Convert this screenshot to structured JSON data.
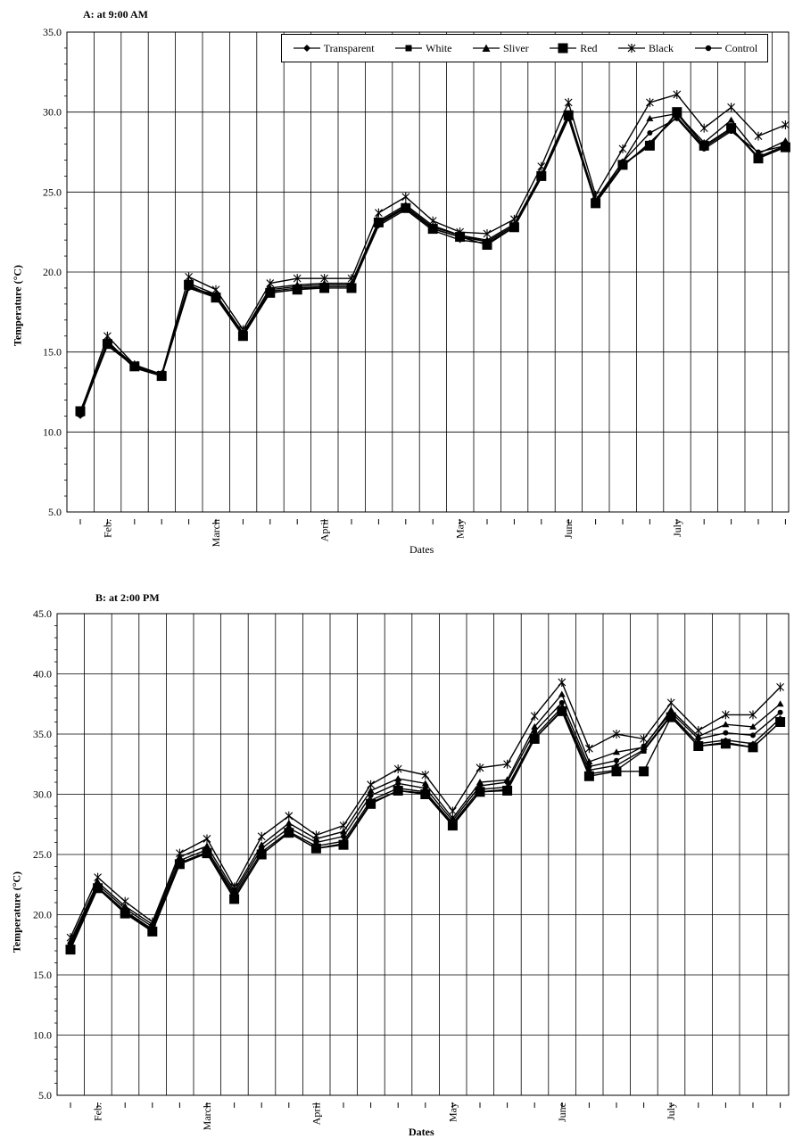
{
  "chart_data": [
    {
      "type": "line",
      "title": "A: at 9:00 AM",
      "xlabel": "Dates",
      "ylabel": "Temperature (°C)",
      "ylim": [
        5,
        35
      ],
      "yticks": [
        "5.0",
        "10.0",
        "15.0",
        "20.0",
        "25.0",
        "30.0",
        "35.0"
      ],
      "month_labels": [
        "Feb.",
        "March",
        "April",
        "May",
        "June",
        "July"
      ],
      "legend": "top-right",
      "grid": true,
      "series": [
        {
          "name": "Transparent",
          "marker": "diamond",
          "values": [
            11.0,
            15.6,
            14.0,
            13.5,
            19.0,
            18.4,
            16.0,
            18.7,
            18.9,
            19.1,
            19.1,
            22.9,
            23.9,
            22.6,
            22.0,
            21.8,
            22.8,
            25.9,
            29.6,
            24.3,
            26.6,
            28.1,
            29.7,
            27.8,
            28.9,
            27.2,
            27.8
          ]
        },
        {
          "name": "White",
          "marker": "square",
          "values": [
            11.1,
            15.4,
            14.1,
            13.6,
            19.1,
            18.5,
            16.1,
            18.8,
            19.0,
            19.1,
            19.1,
            23.0,
            24.0,
            22.7,
            22.2,
            21.9,
            22.9,
            26.0,
            29.7,
            24.4,
            26.7,
            28.0,
            29.9,
            27.9,
            29.0,
            27.2,
            27.9
          ]
        },
        {
          "name": "Sliver",
          "marker": "triangle",
          "values": [
            11.3,
            15.6,
            14.2,
            13.6,
            19.3,
            18.6,
            16.2,
            19.0,
            19.2,
            19.3,
            19.3,
            23.2,
            24.2,
            22.9,
            22.3,
            22.0,
            23.0,
            26.1,
            29.9,
            24.5,
            26.9,
            29.6,
            29.9,
            28.1,
            29.5,
            27.4,
            28.2
          ]
        },
        {
          "name": "Red",
          "marker": "big-square",
          "values": [
            11.3,
            15.5,
            14.1,
            13.5,
            19.2,
            18.4,
            16.0,
            18.7,
            18.9,
            19.0,
            19.0,
            23.1,
            24.0,
            22.7,
            22.2,
            21.7,
            22.8,
            26.0,
            29.8,
            24.3,
            26.7,
            27.9,
            30.0,
            27.9,
            29.0,
            27.1,
            27.8
          ]
        },
        {
          "name": "Black",
          "marker": "star",
          "values": [
            11.2,
            16.0,
            14.2,
            13.6,
            19.7,
            18.9,
            16.4,
            19.3,
            19.6,
            19.6,
            19.6,
            23.7,
            24.7,
            23.2,
            22.5,
            22.4,
            23.3,
            26.6,
            30.6,
            24.8,
            27.7,
            30.6,
            31.1,
            29.0,
            30.3,
            28.5,
            29.2
          ]
        },
        {
          "name": "Control",
          "marker": "circle",
          "values": [
            11.1,
            15.7,
            14.0,
            13.5,
            19.0,
            18.6,
            16.1,
            18.9,
            19.1,
            19.2,
            19.2,
            23.1,
            24.1,
            22.8,
            22.3,
            21.9,
            22.9,
            26.1,
            29.7,
            24.4,
            26.9,
            28.7,
            29.6,
            27.7,
            28.8,
            27.5,
            27.9
          ]
        }
      ]
    },
    {
      "type": "line",
      "title": "B: at 2:00 PM",
      "xlabel": "Dates",
      "ylabel": "Temperature (°C)",
      "ylim": [
        5,
        45
      ],
      "yticks": [
        "5.0",
        "10.0",
        "15.0",
        "20.0",
        "25.0",
        "30.0",
        "35.0",
        "40.0",
        "45.0"
      ],
      "month_labels": [
        "Feb.",
        "March",
        "April",
        "May",
        "June",
        "July"
      ],
      "grid": true,
      "series": [
        {
          "name": "Transparent",
          "marker": "diamond",
          "values": [
            17.5,
            22.3,
            20.3,
            18.8,
            24.3,
            25.2,
            21.6,
            25.2,
            26.9,
            25.7,
            26.1,
            29.5,
            30.5,
            30.2,
            27.6,
            30.4,
            30.6,
            34.8,
            37.2,
            32.0,
            32.4,
            33.7,
            36.6,
            34.2,
            34.5,
            34.2,
            36.3
          ]
        },
        {
          "name": "White",
          "marker": "square",
          "values": [
            17.3,
            22.2,
            20.2,
            18.7,
            24.2,
            25.1,
            21.4,
            25.0,
            26.8,
            25.5,
            25.9,
            29.3,
            30.3,
            30.1,
            27.5,
            30.2,
            30.4,
            34.6,
            37.0,
            31.7,
            32.0,
            33.6,
            36.5,
            34.0,
            34.3,
            33.9,
            36.0
          ]
        },
        {
          "name": "Sliver",
          "marker": "triangle",
          "values": [
            17.8,
            22.7,
            20.7,
            19.2,
            24.8,
            25.7,
            22.0,
            25.8,
            27.6,
            26.3,
            26.9,
            30.3,
            31.3,
            30.9,
            28.0,
            31.0,
            31.2,
            35.6,
            38.3,
            32.7,
            33.5,
            33.9,
            37.0,
            34.8,
            35.8,
            35.6,
            37.5
          ]
        },
        {
          "name": "Red",
          "marker": "big-square",
          "values": [
            17.1,
            22.2,
            20.1,
            18.6,
            24.2,
            25.1,
            21.3,
            25.0,
            26.8,
            25.5,
            25.8,
            29.2,
            30.3,
            30.0,
            27.4,
            30.2,
            30.3,
            34.6,
            36.9,
            31.5,
            31.9,
            31.9,
            36.4,
            34.0,
            34.2,
            33.9,
            36.0
          ]
        },
        {
          "name": "Black",
          "marker": "star",
          "values": [
            18.1,
            23.1,
            21.1,
            19.4,
            25.1,
            26.3,
            22.3,
            26.5,
            28.2,
            26.6,
            27.4,
            30.8,
            32.1,
            31.6,
            28.6,
            32.2,
            32.5,
            36.5,
            39.3,
            33.8,
            35.0,
            34.6,
            37.6,
            35.3,
            36.6,
            36.6,
            38.9
          ]
        },
        {
          "name": "Control",
          "marker": "circle",
          "values": [
            17.6,
            22.5,
            20.5,
            19.0,
            24.5,
            25.4,
            21.8,
            25.5,
            27.2,
            26.0,
            26.5,
            29.9,
            30.9,
            30.5,
            27.8,
            30.7,
            31.0,
            35.2,
            37.6,
            32.3,
            32.8,
            34.0,
            36.8,
            34.6,
            35.1,
            34.9,
            36.8
          ]
        }
      ]
    }
  ]
}
